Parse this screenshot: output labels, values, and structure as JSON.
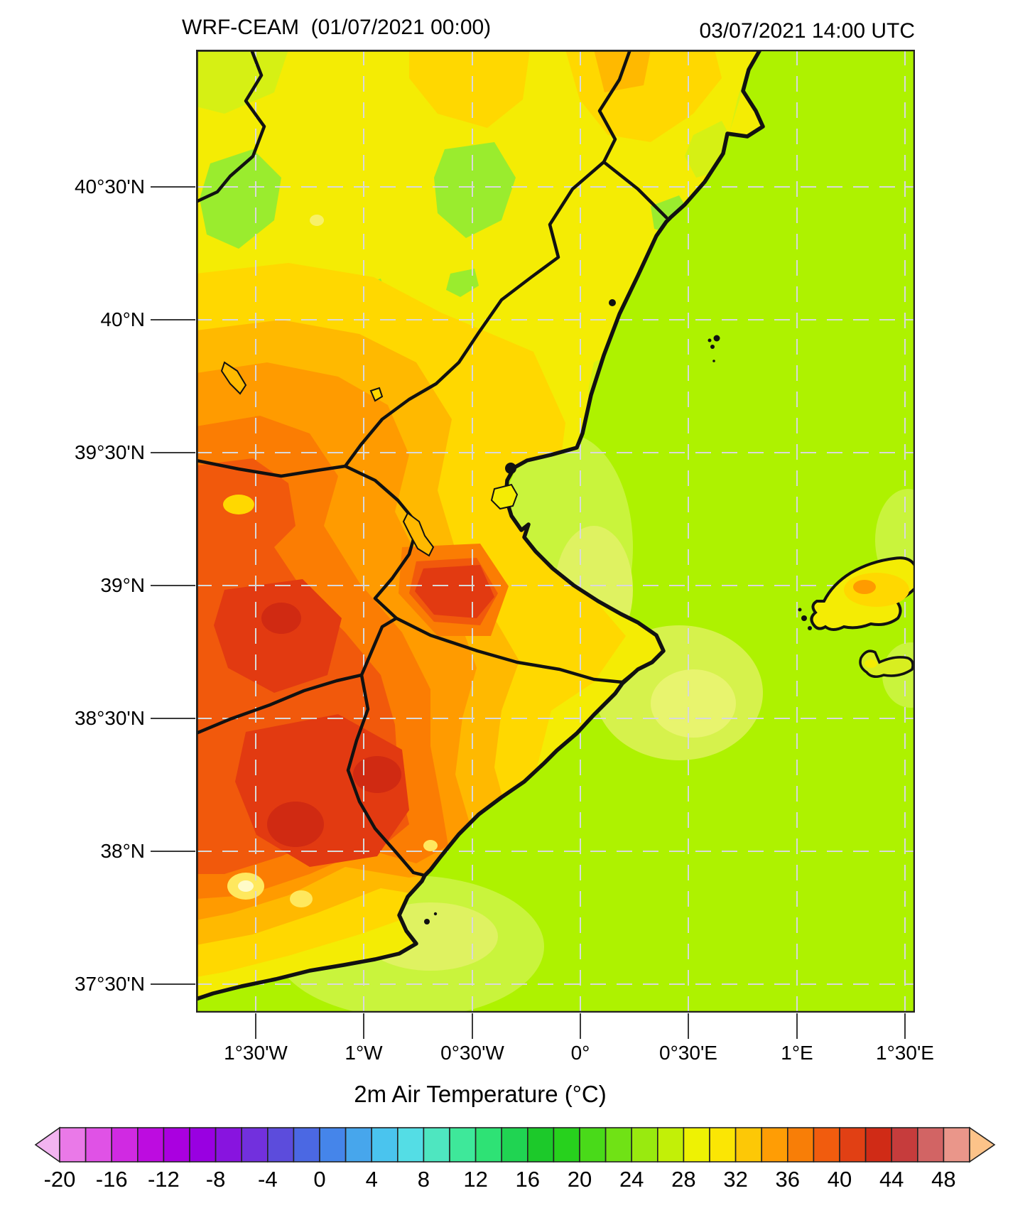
{
  "header": {
    "model_title": "WRF-CEAM  (01/07/2021 00:00)",
    "valid_time": "03/07/2021 14:00 UTC"
  },
  "map": {
    "lat_labels": [
      "40°30'N",
      "40°N",
      "39°30'N",
      "39°N",
      "38°30'N",
      "38°N",
      "37°30'N"
    ],
    "lon_labels": [
      "1°30'W",
      "1°W",
      "0°30'W",
      "0°",
      "0°30'E",
      "1°E",
      "1°30'E"
    ],
    "colors": {
      "sea": "#aef200",
      "sea_light": "#c9f43c",
      "sea_pale": "#e2f45e",
      "land_yellow": "#f4ec04",
      "yellow_green": "#d6f014",
      "green": "#9aec2e",
      "gold": "#ffd800",
      "orange_light": "#ffb900",
      "orange": "#ff9b00",
      "orange_deep": "#fb7d03",
      "orange_red": "#f1590c",
      "red": "#e23a11",
      "dark_red": "#d02a12",
      "hotspot": "#ffe85e",
      "hotspot_core": "#fffbc8",
      "coast_line": "#111111",
      "gridline": "#d9d9d9"
    }
  },
  "colorbar": {
    "title": "2m Air Temperature (°C)",
    "units": "°C",
    "value_min": -20,
    "value_max": 50,
    "cell_step": 2,
    "tick_labels": [
      "-20",
      "-16",
      "-12",
      "-8",
      "-4",
      "0",
      "4",
      "8",
      "12",
      "16",
      "20",
      "24",
      "28",
      "32",
      "36",
      "40",
      "44",
      "48"
    ],
    "cell_colors": [
      "#ea79e8",
      "#e052e6",
      "#d02ae2",
      "#bd0ce0",
      "#aa00e0",
      "#9900e1",
      "#8814df",
      "#7230dd",
      "#5c4cdc",
      "#4b68e3",
      "#4585ea",
      "#47a6ec",
      "#4ac4ee",
      "#54dde5",
      "#4ee6c0",
      "#3ee89a",
      "#2ee275",
      "#20d452",
      "#1cc92a",
      "#27d11d",
      "#49da19",
      "#70e215",
      "#99ea0f",
      "#c2f007",
      "#eef203",
      "#fbe604",
      "#fdc806",
      "#ff9d05",
      "#f87e07",
      "#f15c0e",
      "#e14014",
      "#d02b16",
      "#c63c3c",
      "#d26464",
      "#ea968a"
    ],
    "left_arrow_color": "#f2b4f0",
    "right_arrow_color": "#fcc389",
    "outline_color": "#222222"
  }
}
